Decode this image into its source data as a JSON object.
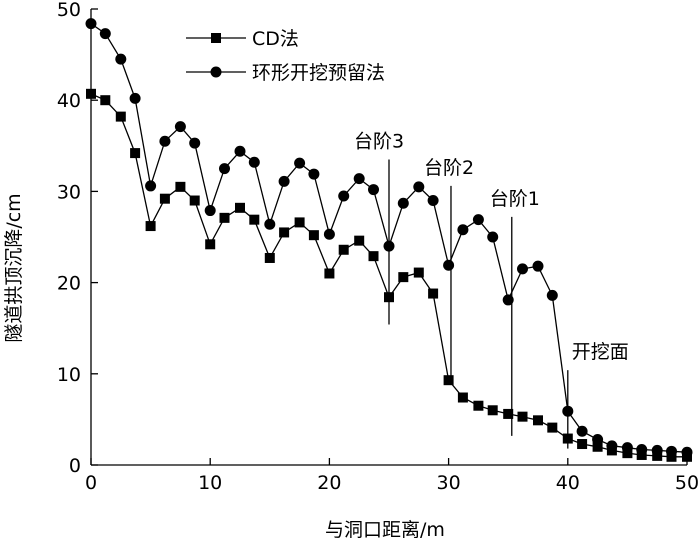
{
  "chart_data": {
    "type": "line",
    "xlabel": "与洞口距离/m",
    "ylabel": "隧道拱顶沉降/cm",
    "xlim": [
      0,
      50
    ],
    "ylim": [
      0,
      50
    ],
    "xticks": [
      0,
      10,
      20,
      30,
      40,
      50
    ],
    "yticks": [
      0,
      10,
      20,
      30,
      40,
      50
    ],
    "legend_position": "top-left",
    "series": [
      {
        "name": "CD法",
        "marker": "square",
        "x": [
          0,
          1.2,
          2.5,
          3.7,
          5,
          6.2,
          7.5,
          8.7,
          10,
          11.2,
          12.5,
          13.7,
          15,
          16.2,
          17.5,
          18.7,
          20,
          21.2,
          22.5,
          23.7,
          25,
          26.2,
          27.5,
          28.7,
          30,
          31.2,
          32.5,
          33.7,
          35,
          36.2,
          37.5,
          38.7,
          40,
          41.2,
          42.5,
          43.7,
          45,
          46.2,
          47.5,
          48.7,
          50
        ],
        "y": [
          40.7,
          40.0,
          38.2,
          34.2,
          26.2,
          29.2,
          30.5,
          29.0,
          24.2,
          27.1,
          28.2,
          26.9,
          22.7,
          25.5,
          26.6,
          25.2,
          21.0,
          23.6,
          24.6,
          22.9,
          18.4,
          20.6,
          21.1,
          18.8,
          9.3,
          7.4,
          6.5,
          6.0,
          5.6,
          5.3,
          4.9,
          4.1,
          2.9,
          2.3,
          2.0,
          1.6,
          1.3,
          1.1,
          1.0,
          0.9,
          0.9
        ]
      },
      {
        "name": "环形开挖预留法",
        "marker": "circle",
        "x": [
          0,
          1.2,
          2.5,
          3.7,
          5,
          6.2,
          7.5,
          8.7,
          10,
          11.2,
          12.5,
          13.7,
          15,
          16.2,
          17.5,
          18.7,
          20,
          21.2,
          22.5,
          23.7,
          25,
          26.2,
          27.5,
          28.7,
          30,
          31.2,
          32.5,
          33.7,
          35,
          36.2,
          37.5,
          38.7,
          40,
          41.2,
          42.5,
          43.7,
          45,
          46.2,
          47.5,
          48.7,
          50
        ],
        "y": [
          48.4,
          47.3,
          44.5,
          40.2,
          30.6,
          35.5,
          37.1,
          35.3,
          27.9,
          32.5,
          34.4,
          33.2,
          26.4,
          31.1,
          33.1,
          31.9,
          25.3,
          29.5,
          31.4,
          30.2,
          24.0,
          28.7,
          30.5,
          29.0,
          21.9,
          25.8,
          26.9,
          25.0,
          18.1,
          21.5,
          21.8,
          18.6,
          5.9,
          3.7,
          2.8,
          2.1,
          1.9,
          1.7,
          1.6,
          1.5,
          1.4
        ]
      }
    ],
    "annotations": [
      {
        "label": "台阶3",
        "x": 25.0,
        "y_from": 15.4,
        "y_to": 33.5
      },
      {
        "label": "台阶2",
        "x": 30.2,
        "y_from": 9.8,
        "y_to": 30.6
      },
      {
        "label": "台阶1",
        "x": 35.3,
        "y_from": 3.2,
        "y_to": 27.2
      },
      {
        "label": "开挖面",
        "x": 40.0,
        "y_from": 1.8,
        "y_to": 10.4
      }
    ]
  }
}
